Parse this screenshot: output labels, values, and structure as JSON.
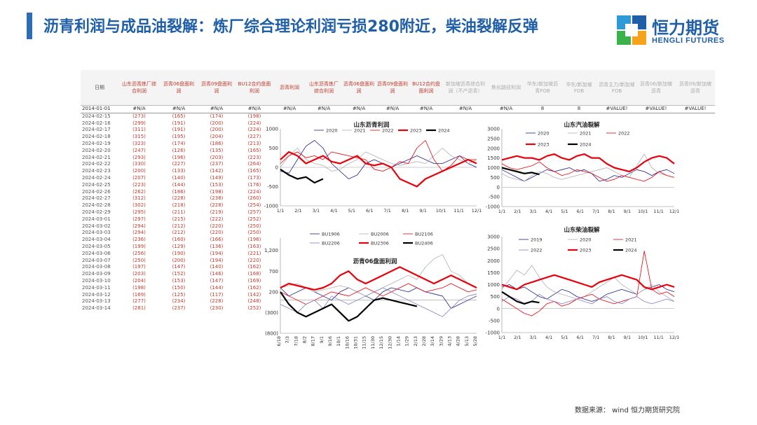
{
  "title": "沥青利润与成品油裂解：炼厂综合理论利润亏损280附近，柴油裂解反弹",
  "logo": {
    "cn": "恒力期货",
    "en": "HENGLI FUTURES"
  },
  "footer": "数据来源： wind 恒力期货研究院",
  "colors": {
    "accent": "#1f5fa8",
    "red": "#e8000b",
    "navy": "#1f1f8f",
    "grey": "#b0b0b0",
    "black": "#000000"
  },
  "table": {
    "headers": [
      "日期",
      "山东沥青炼厂综合利润",
      "沥青06盘面利润",
      "沥青09盘面利润",
      "BU12合约盘面利润",
      "沥青利润",
      "山东沥青炼厂综合利润",
      "沥青06盘面利润",
      "沥青09盘面利润",
      "BU12合约盘面利润",
      "新加坡沥青综合利润（不产沥青）",
      "焦化路径利润",
      "华东/新加坡沥青FOB",
      "华东/新加坡FOB",
      "沥青主力/新加坡FOB",
      "沥青06/新加坡沥青",
      "沥青09/新加坡沥青"
    ],
    "na_row": [
      "2014-01-01",
      "#N/A",
      "#N/A",
      "#N/A",
      "#N/A",
      "#N/A",
      "#N/A",
      "#N/A",
      "#N/A",
      "#N/A",
      "#N/A",
      "#N/A",
      "8",
      "8",
      "#VALUE!",
      "#VALUE!",
      "#VALUE!"
    ],
    "rows": [
      [
        "2024-02-15",
        "(273)",
        "(165)",
        "(174)",
        "(198)"
      ],
      [
        "2024-02-16",
        "(299)",
        "(191)",
        "(200)",
        "(224)"
      ],
      [
        "2024-02-17",
        "(311)",
        "(191)",
        "(200)",
        "(224)"
      ],
      [
        "2024-02-18",
        "(315)",
        "(195)",
        "(204)",
        "(227)"
      ],
      [
        "2024-02-19",
        "(323)",
        "(174)",
        "(186)",
        "(213)"
      ],
      [
        "2024-02-20",
        "(247)",
        "(126)",
        "(135)",
        "(165)"
      ],
      [
        "2024-02-21",
        "(293)",
        "(196)",
        "(203)",
        "(223)"
      ],
      [
        "2024-02-22",
        "(330)",
        "(227)",
        "(237)",
        "(264)"
      ],
      [
        "2024-02-23",
        "(200)",
        "(133)",
        "(142)",
        "(165)"
      ],
      [
        "2024-02-24",
        "(207)",
        "(140)",
        "(149)",
        "(173)"
      ],
      [
        "2024-02-25",
        "(223)",
        "(144)",
        "(153)",
        "(176)"
      ],
      [
        "2024-02-26",
        "(262)",
        "(186)",
        "(198)",
        "(224)"
      ],
      [
        "2024-02-27",
        "(312)",
        "(228)",
        "(238)",
        "(260)"
      ],
      [
        "2024-02-28",
        "(302)",
        "(218)",
        "(228)",
        "(254)"
      ],
      [
        "2024-02-29",
        "(295)",
        "(211)",
        "(219)",
        "(257)"
      ],
      [
        "2024-03-01",
        "(297)",
        "(215)",
        "(222)",
        "(252)"
      ],
      [
        "2024-03-02",
        "(294)",
        "(212)",
        "(220)",
        "(250)"
      ],
      [
        "2024-03-03",
        "(294)",
        "(212)",
        "(220)",
        "(250)"
      ],
      [
        "2024-03-04",
        "(236)",
        "(160)",
        "(166)",
        "(196)"
      ],
      [
        "2024-03-05",
        "(199)",
        "(129)",
        "(136)",
        "(163)"
      ],
      [
        "2024-03-06",
        "(256)",
        "(190)",
        "(194)",
        "(221)"
      ],
      [
        "2024-03-07",
        "(250)",
        "(200)",
        "(194)",
        "(220)"
      ],
      [
        "2024-03-08",
        "(197)",
        "(147)",
        "(140)",
        "(162)"
      ],
      [
        "2024-03-09",
        "(203)",
        "(152)",
        "(146)",
        "(168)"
      ],
      [
        "2024-03-10",
        "(204)",
        "(153)",
        "(147)",
        "(169)"
      ],
      [
        "2024-03-11",
        "(198)",
        "(150)",
        "(144)",
        "(162)"
      ],
      [
        "2024-03-12",
        "(169)",
        "(125)",
        "(117)",
        "(142)"
      ],
      [
        "2024-03-13",
        "(277)",
        "(234)",
        "(228)",
        "(248)"
      ],
      [
        "2024-03-14",
        "(281)",
        "(237)",
        "(230)",
        "(252)"
      ]
    ]
  },
  "chart_data": [
    {
      "type": "line",
      "title": "山东沥青利润",
      "x_ticks": [
        "1/1",
        "2/1",
        "3/1",
        "4/1",
        "5/1",
        "6/1",
        "7/1",
        "8/1",
        "9/1",
        "10/1",
        "11/1",
        "12/1"
      ],
      "y_ticks": [
        "1000",
        "500",
        "0",
        "-500",
        "-1000"
      ],
      "ylim": [
        -1000,
        1000
      ],
      "series": [
        {
          "name": "2020",
          "color": "#1f1f8f",
          "width": 0.8,
          "values": [
            -100,
            -150,
            200,
            550,
            700,
            500,
            100,
            -100,
            -300,
            -200,
            100,
            200,
            100,
            0,
            100,
            200,
            300,
            200,
            100,
            100,
            200,
            300,
            100,
            0
          ]
        },
        {
          "name": "2021",
          "color": "#b0b0b0",
          "width": 0.8,
          "values": [
            0,
            300,
            500,
            200,
            100,
            50,
            -100,
            -50,
            100,
            200,
            400,
            300,
            200,
            100,
            50,
            100,
            150,
            100,
            300,
            500,
            300,
            200,
            100,
            200
          ]
        },
        {
          "name": "2022",
          "color": "#e8000b",
          "width": 0.8,
          "values": [
            100,
            300,
            400,
            250,
            300,
            200,
            400,
            350,
            300,
            250,
            200,
            -50,
            -100,
            0,
            150,
            100,
            500,
            700,
            200,
            -100,
            50,
            300,
            200,
            200
          ]
        },
        {
          "name": "2023",
          "color": "#e8000b",
          "width": 2.2,
          "values": [
            200,
            400,
            300,
            100,
            200,
            300,
            150,
            100,
            200,
            300,
            100,
            50,
            100,
            0,
            -300,
            -400,
            -500,
            -300,
            -200,
            -100,
            0,
            100,
            200,
            100
          ]
        },
        {
          "name": "2024",
          "color": "#000000",
          "width": 2.2,
          "values": [
            -50,
            -200,
            -300,
            -250,
            -400,
            -300
          ]
        }
      ]
    },
    {
      "type": "line",
      "title": "山东汽油裂解",
      "x_ticks": [
        "1/1",
        "2/1",
        "3/1",
        "4/1",
        "5/1",
        "6/1",
        "7/1",
        "8/1",
        "9/1",
        "10/1",
        "11/1",
        "12/1"
      ],
      "y_ticks": [
        "3000",
        "2500",
        "2000",
        "1500",
        "1000",
        "500",
        "0",
        "-500",
        "-1000"
      ],
      "ylim": [
        -1000,
        3000
      ],
      "series": [
        {
          "name": "2020",
          "color": "#1f1f8f",
          "width": 0.8,
          "values": [
            900,
            700,
            500,
            300,
            500,
            700,
            900,
            800,
            900,
            1000,
            800,
            900,
            700,
            300,
            400,
            600,
            500,
            700,
            900,
            800,
            600,
            800,
            900,
            700
          ]
        },
        {
          "name": "2021",
          "color": "#b0b0b0",
          "width": 0.8,
          "values": [
            700,
            500,
            400,
            300,
            600,
            800,
            700,
            500,
            400,
            500,
            600,
            700,
            800,
            900,
            1000,
            800,
            600,
            500,
            1100,
            1700,
            1000,
            700,
            600,
            500
          ]
        },
        {
          "name": "2022",
          "color": "#e8000b",
          "width": 0.8,
          "values": [
            1200,
            1000,
            900,
            1000,
            1100,
            1300,
            1000,
            800,
            600,
            700,
            900,
            800,
            700,
            500,
            300,
            400,
            600,
            500,
            400,
            300,
            500,
            800,
            600,
            500
          ]
        },
        {
          "name": "2023",
          "color": "#e8000b",
          "width": 2.2,
          "values": [
            1400,
            1500,
            1600,
            1500,
            1500,
            1400,
            1600,
            1700,
            1500,
            1400,
            1600,
            1700,
            1500,
            1500,
            1200,
            1000,
            900,
            800,
            1000,
            1300,
            1500,
            1600,
            1500,
            1200
          ]
        },
        {
          "name": "2024",
          "color": "#000000",
          "width": 2.2,
          "values": [
            1000,
            900,
            800,
            700,
            750,
            650
          ]
        }
      ]
    },
    {
      "type": "line",
      "title": "沥青06盘面利润",
      "x_ticks": [
        "6/18",
        "7/3",
        "7/18",
        "8/2",
        "8/17",
        "9/1",
        "9/16",
        "10/1",
        "10/16",
        "10/31",
        "11/15",
        "11/30",
        "12/15",
        "12/30",
        "1/14",
        "1/29",
        "2/13",
        "2/28",
        "3/14",
        "3/29",
        "4/13",
        "4/28",
        "5/13",
        "5/28"
      ],
      "y_ticks": [
        "1,200",
        "700",
        "200",
        "(300)",
        "(800)"
      ],
      "ylim": [
        -800,
        1500
      ],
      "series": [
        {
          "name": "BU1906",
          "color": "#1f1f8f",
          "width": 0.8,
          "values": [
            300,
            100,
            200,
            300,
            200,
            100,
            0,
            200,
            300,
            200,
            100,
            0,
            200,
            300,
            250,
            200,
            300,
            200,
            150,
            100,
            -200,
            -100,
            0,
            100
          ]
        },
        {
          "name": "BU2006",
          "color": "#b0b0b0",
          "width": 0.8,
          "values": [
            300,
            350,
            400,
            300,
            200,
            250,
            300,
            350,
            300,
            200,
            100,
            200,
            300,
            400,
            500,
            600,
            500,
            800,
            1000,
            1100,
            700,
            600,
            400,
            300
          ]
        },
        {
          "name": "BU2106",
          "color": "#e8000b",
          "width": 0.8,
          "values": [
            200,
            100,
            0,
            -100,
            0,
            100,
            200,
            150,
            100,
            200,
            300,
            200,
            100,
            200,
            300,
            400,
            300,
            200,
            250,
            300,
            400,
            300,
            200,
            250
          ]
        },
        {
          "name": "BU2206",
          "color": "#8080c0",
          "width": 0.8,
          "values": [
            -100,
            -200,
            -300,
            -100,
            0,
            -200,
            100,
            0,
            -100,
            0,
            100,
            200,
            300,
            200,
            100,
            0,
            -100,
            -200,
            -300,
            -400,
            -200,
            0,
            100,
            150
          ]
        },
        {
          "name": "BU2306",
          "color": "#e8000b",
          "width": 2.2,
          "values": [
            300,
            400,
            350,
            300,
            250,
            300,
            400,
            600,
            700,
            500,
            400,
            500,
            600,
            700,
            800,
            700,
            600,
            500,
            400,
            500,
            600,
            500,
            400,
            300
          ]
        },
        {
          "name": "BU2406",
          "color": "#000000",
          "width": 2.2,
          "values": [
            200,
            -100,
            -300,
            -400,
            -300,
            -200,
            -100,
            -300,
            -500,
            -400,
            -200,
            0,
            50,
            0,
            -50,
            -100,
            -150
          ]
        }
      ]
    },
    {
      "type": "line",
      "title": "山东柴油裂解",
      "x_ticks": [
        "1/1",
        "2/1",
        "3/1",
        "4/1",
        "5/1",
        "6/1",
        "7/1",
        "8/1",
        "9/1",
        "10/1",
        "11/1",
        "12/1"
      ],
      "y_ticks": [
        "3000",
        "2500",
        "2000",
        "1500",
        "1000",
        "500",
        "0",
        "-500",
        "-1000"
      ],
      "ylim": [
        -1000,
        3000
      ],
      "series": [
        {
          "name": "2019",
          "color": "#1f1f8f",
          "width": 0.8,
          "values": [
            900,
            1000,
            800,
            900,
            700,
            500,
            400,
            600,
            800,
            700,
            500,
            400,
            300,
            400,
            600,
            700,
            800,
            700,
            600,
            800,
            900,
            1000,
            800,
            700
          ]
        },
        {
          "name": "2020",
          "color": "#b0b0b0",
          "width": 0.8,
          "values": [
            800,
            1200,
            1600,
            1400,
            1800,
            1300,
            900,
            700,
            600,
            500,
            400,
            500,
            700,
            900,
            1100,
            1300,
            1000,
            800,
            600,
            800,
            1000,
            700,
            500,
            300
          ]
        },
        {
          "name": "2021",
          "color": "#e8000b",
          "width": 0.8,
          "values": [
            400,
            200,
            0,
            -200,
            -300,
            -100,
            200,
            300,
            100,
            200,
            400,
            500,
            600,
            400,
            300,
            200,
            300,
            400,
            500,
            2400,
            800,
            600,
            700,
            500
          ]
        },
        {
          "name": "2022",
          "color": "#8080c0",
          "width": 0.8,
          "values": [
            300,
            500,
            400,
            200,
            300,
            600,
            400,
            300,
            200,
            300,
            400,
            300,
            200,
            400,
            500,
            300,
            200,
            400,
            500,
            300,
            200,
            300,
            400,
            300
          ]
        },
        {
          "name": "2023",
          "color": "#e8000b",
          "width": 2.2,
          "values": [
            1000,
            900,
            800,
            1000,
            1100,
            1200,
            1300,
            1400,
            1300,
            1200,
            1100,
            1000,
            900,
            1100,
            1200,
            1300,
            1400,
            1300,
            1200,
            900,
            800,
            900,
            1000,
            900
          ]
        },
        {
          "name": "2024",
          "color": "#000000",
          "width": 2.2,
          "values": [
            700,
            500,
            300,
            200,
            300,
            250
          ]
        }
      ]
    }
  ]
}
